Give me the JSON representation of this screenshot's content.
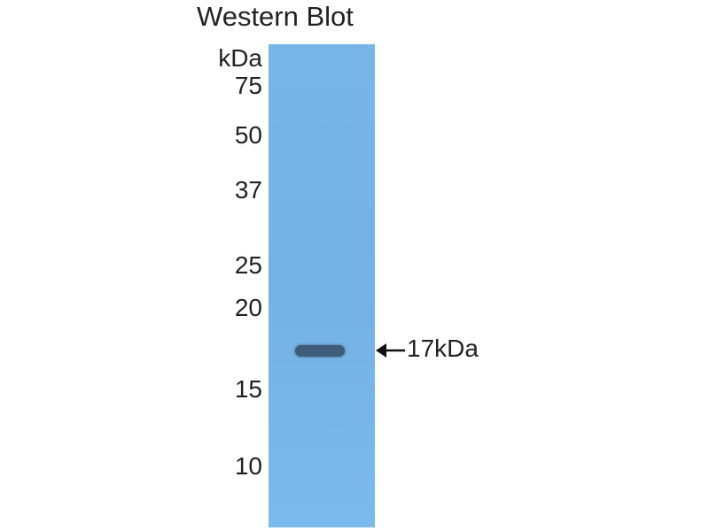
{
  "title": "Western Blot",
  "unit_label": "kDa",
  "markers": [
    "75",
    "50",
    "37",
    "25",
    "20",
    "15",
    "10"
  ],
  "band_label": "17kDa",
  "colors": {
    "membrane": "#78b6e8",
    "band": "#3f5d7a"
  },
  "icons": {
    "band_pointer": "left-arrow-icon"
  }
}
